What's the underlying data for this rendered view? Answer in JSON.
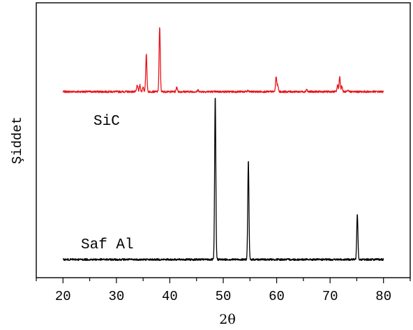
{
  "chart_data": {
    "type": "line",
    "xlabel": "2θ",
    "ylabel": "Şiddet",
    "xlim": [
      15,
      85
    ],
    "yticks_shown": false,
    "grid": false,
    "legend": "none",
    "x_ticks": [
      20,
      30,
      40,
      50,
      60,
      70,
      80
    ],
    "x_tick_labels": [
      "20",
      "30",
      "40",
      "50",
      "60",
      "70",
      "80"
    ],
    "series": [
      {
        "name": "SiC",
        "color": "#e8141b",
        "x_range": [
          20,
          80
        ],
        "baseline": 1.02,
        "peaks": [
          {
            "x": 33.9,
            "y": 1.06
          },
          {
            "x": 34.4,
            "y": 1.06
          },
          {
            "x": 35.0,
            "y": 1.05
          },
          {
            "x": 35.6,
            "y": 1.25
          },
          {
            "x": 38.1,
            "y": 1.41
          },
          {
            "x": 41.3,
            "y": 1.05
          },
          {
            "x": 45.3,
            "y": 1.03
          },
          {
            "x": 54.6,
            "y": 1.025
          },
          {
            "x": 59.9,
            "y": 1.11
          },
          {
            "x": 60.2,
            "y": 1.06
          },
          {
            "x": 65.6,
            "y": 1.035
          },
          {
            "x": 71.4,
            "y": 1.06
          },
          {
            "x": 71.8,
            "y": 1.11
          },
          {
            "x": 72.2,
            "y": 1.055
          },
          {
            "x": 73.4,
            "y": 1.025
          }
        ]
      },
      {
        "name": "Saf Al",
        "color": "#000000",
        "x_range": [
          20,
          80
        ],
        "baseline": 0.0,
        "peaks": [
          {
            "x": 48.5,
            "y": 0.99
          },
          {
            "x": 54.7,
            "y": 0.6
          },
          {
            "x": 75.1,
            "y": 0.28
          }
        ]
      }
    ]
  }
}
